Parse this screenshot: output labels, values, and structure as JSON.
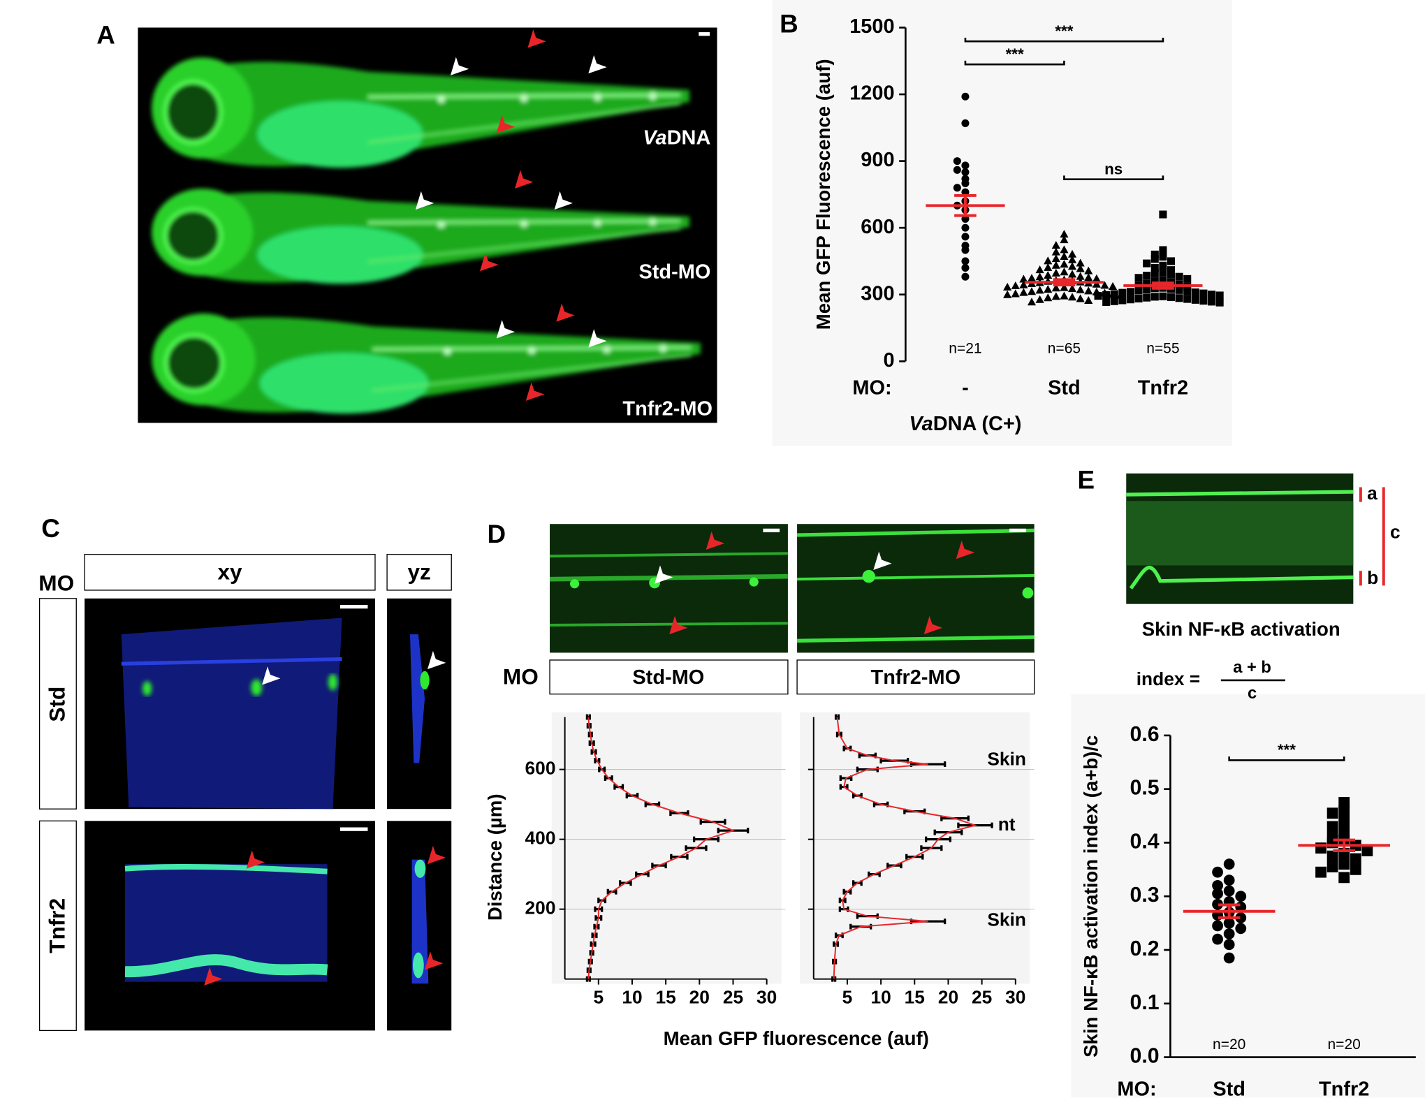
{
  "panel_labels": [
    "A",
    "B",
    "C",
    "D",
    "E"
  ],
  "panel_a": {
    "top_label": {
      "italic": "Va",
      "text": "DNA"
    },
    "labels": [
      "Std-MO",
      "Tnfr2-MO"
    ]
  },
  "panel_c": {
    "row_header": "MO",
    "columns": [
      "xy",
      "yz"
    ],
    "rows": [
      "Std",
      "Tnfr2"
    ]
  },
  "panel_d": {
    "row_header": "MO",
    "columns": [
      "Std-MO",
      "Tnfr2-MO"
    ],
    "xlabel": "Mean GFP fluorescence (auf)"
  },
  "panel_e": {
    "marks": [
      "a",
      "b",
      "c"
    ],
    "caption": "Skin NF-κB activation",
    "formula": {
      "lhs": "index =",
      "numerator": "a + b",
      "denominator": "c"
    }
  },
  "chart_data": [
    {
      "type": "dot",
      "ylabel": "Mean GFP Fluorescence (auf)",
      "ylim": [
        0,
        1500
      ],
      "yticks": [
        0,
        300,
        600,
        900,
        1200,
        1500
      ],
      "row_label": "MO:",
      "categories": [
        "-",
        "Std",
        "Tnfr2"
      ],
      "group_label": {
        "italic": "Va",
        "text": "DNA (C+)"
      },
      "n_labels": [
        "n=21",
        "n=65",
        "n=55"
      ],
      "point_color": "#000000",
      "mean_color": "#e8262a",
      "x_axis": false,
      "groups": [
        {
          "marker": "circle",
          "mean": 700,
          "sem": 45,
          "values": [
            1190,
            1070,
            880,
            900,
            850,
            860,
            820,
            800,
            780,
            760,
            720,
            700,
            680,
            640,
            600,
            560,
            520,
            500,
            450,
            420,
            380
          ]
        },
        {
          "marker": "triangle",
          "mean": 355,
          "sem": 12,
          "values": [
            570,
            545,
            520,
            500,
            490,
            480,
            470,
            460,
            455,
            450,
            440,
            435,
            430,
            425,
            420,
            415,
            410,
            405,
            400,
            395,
            390,
            385,
            380,
            378,
            375,
            372,
            370,
            368,
            365,
            362,
            360,
            358,
            355,
            352,
            350,
            348,
            345,
            342,
            340,
            338,
            335,
            332,
            330,
            328,
            325,
            322,
            320,
            318,
            315,
            312,
            310,
            308,
            305,
            302,
            300,
            298,
            295,
            292,
            290,
            287,
            284,
            280,
            276,
            272,
            265
          ]
        },
        {
          "marker": "square",
          "mean": 340,
          "sem": 12,
          "values": [
            660,
            500,
            480,
            470,
            460,
            450,
            440,
            430,
            420,
            410,
            400,
            395,
            390,
            385,
            380,
            375,
            370,
            365,
            360,
            355,
            350,
            345,
            340,
            335,
            330,
            328,
            325,
            322,
            320,
            318,
            315,
            312,
            310,
            308,
            305,
            302,
            300,
            298,
            296,
            294,
            292,
            290,
            288,
            286,
            284,
            282,
            280,
            278,
            276,
            274,
            272,
            270,
            268,
            266,
            264
          ]
        }
      ],
      "comparisons": [
        {
          "from": 0,
          "to": 2,
          "label": "***"
        },
        {
          "from": 0,
          "to": 1,
          "label": "***"
        },
        {
          "from": 1,
          "to": 2,
          "label": "ns"
        }
      ]
    },
    {
      "type": "profile",
      "ylabel": "Distance (µm)",
      "xlim": [
        0,
        30
      ],
      "xticks": [
        5,
        10,
        15,
        20,
        25,
        30
      ],
      "ylim": [
        0,
        750
      ],
      "yticks": [
        200,
        400,
        600
      ],
      "color": "#e8262a",
      "error_color": "#000000",
      "x": [
        0,
        25,
        50,
        75,
        100,
        125,
        150,
        175,
        200,
        225,
        250,
        275,
        300,
        325,
        350,
        375,
        400,
        425,
        450,
        475,
        500,
        525,
        550,
        575,
        600,
        625,
        650,
        675,
        700,
        725,
        750
      ],
      "values": [
        3.5,
        3.6,
        3.8,
        4,
        4.2,
        4.4,
        4.7,
        5,
        5,
        5.5,
        7,
        9,
        11.5,
        14,
        17,
        19.5,
        21,
        25,
        22,
        17,
        13,
        10,
        8,
        6.5,
        5.5,
        4.8,
        4.3,
        4,
        3.8,
        3.6,
        3.5
      ],
      "errors": [
        0.2,
        0.2,
        0.2,
        0.2,
        0.3,
        0.3,
        0.3,
        0.4,
        0.5,
        0.5,
        0.6,
        0.8,
        0.9,
        1,
        1.2,
        1.5,
        1.8,
        2.2,
        1.8,
        1.3,
        1,
        0.8,
        0.6,
        0.5,
        0.4,
        0.3,
        0.3,
        0.3,
        0.2,
        0.2,
        0.2
      ]
    },
    {
      "type": "profile",
      "xlim": [
        0,
        30
      ],
      "xticks": [
        5,
        10,
        15,
        20,
        25,
        30
      ],
      "ylim": [
        0,
        750
      ],
      "color": "#e8262a",
      "error_color": "#000000",
      "annotations": [
        "Skin",
        "nt",
        "Skin"
      ],
      "x": [
        0,
        50,
        100,
        125,
        150,
        165,
        180,
        200,
        225,
        250,
        275,
        300,
        325,
        350,
        375,
        400,
        420,
        440,
        460,
        480,
        500,
        525,
        550,
        575,
        600,
        615,
        625,
        640,
        660,
        700,
        750
      ],
      "values": [
        3,
        3.1,
        3.3,
        3.8,
        7,
        17,
        8,
        4.5,
        4.3,
        5,
        6.5,
        9,
        12,
        15,
        17.5,
        18.5,
        20,
        24,
        21,
        15,
        10,
        6.5,
        4.5,
        4.8,
        8,
        17,
        12,
        8,
        5,
        3.8,
        3.5
      ],
      "errors": [
        0.2,
        0.2,
        0.3,
        0.5,
        1.5,
        2.5,
        1.5,
        0.6,
        0.4,
        0.5,
        0.6,
        0.8,
        1,
        1.2,
        1.5,
        1.8,
        2,
        2.5,
        2,
        1.5,
        1,
        0.6,
        0.5,
        0.8,
        1.5,
        2.5,
        2,
        1.2,
        0.5,
        0.3,
        0.2
      ]
    },
    {
      "type": "dot",
      "ylabel": "Skin NF-κB activation index (a+b)/c",
      "ylim": [
        0,
        0.6
      ],
      "yticks": [
        {
          "value": 0,
          "label": "0.0"
        },
        0.1,
        0.2,
        0.3,
        0.4,
        0.5,
        0.6
      ],
      "row_label": "MO:",
      "categories": [
        "Std",
        "Tnfr2"
      ],
      "n_labels": [
        "n=20",
        "n=20"
      ],
      "point_color": "#000000",
      "mean_color": "#e8262a",
      "x_axis": true,
      "groups": [
        {
          "marker": "circle",
          "mean": 0.272,
          "sem": 0.012,
          "values": [
            0.36,
            0.345,
            0.33,
            0.32,
            0.31,
            0.305,
            0.3,
            0.29,
            0.285,
            0.28,
            0.27,
            0.265,
            0.26,
            0.25,
            0.245,
            0.24,
            0.23,
            0.22,
            0.21,
            0.185
          ]
        },
        {
          "marker": "square",
          "mean": 0.395,
          "sem": 0.01,
          "values": [
            0.475,
            0.46,
            0.455,
            0.44,
            0.43,
            0.42,
            0.41,
            0.405,
            0.4,
            0.395,
            0.39,
            0.385,
            0.38,
            0.375,
            0.37,
            0.36,
            0.355,
            0.35,
            0.345,
            0.335
          ]
        }
      ],
      "comparisons": [
        {
          "from": 0,
          "to": 1,
          "label": "***"
        }
      ]
    }
  ]
}
